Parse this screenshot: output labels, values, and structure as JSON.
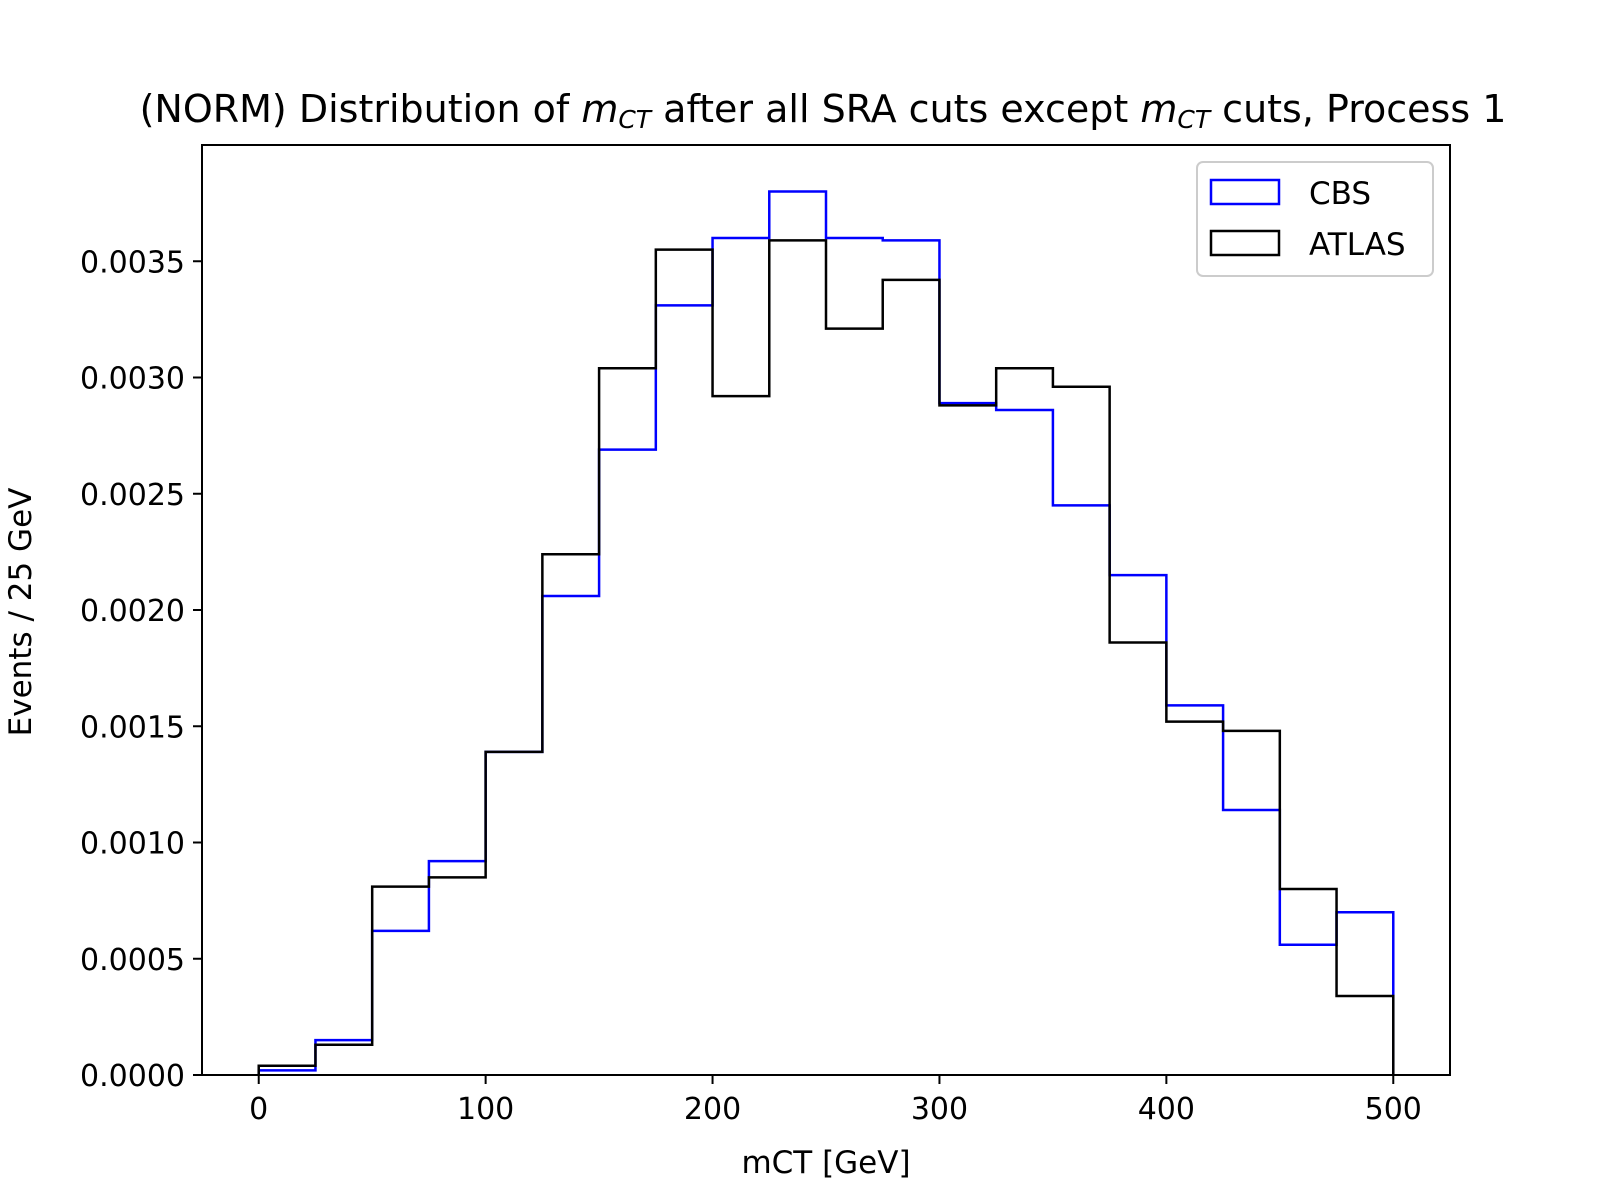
{
  "chart_data": {
    "type": "histogram-step",
    "title": {
      "prefix": "(NORM) Distribution of ",
      "m1_main": "m",
      "m1_sub": "CT",
      "middle": " after all SRA cuts except ",
      "m2_main": "m",
      "m2_sub": "CT",
      "suffix": " cuts, Process 1"
    },
    "xlabel": "mCT [GeV]",
    "ylabel": "Events / 25 GeV",
    "xlim": [
      -25,
      525
    ],
    "ylim": [
      0,
      0.004
    ],
    "xticks": [
      {
        "value": 0,
        "label": "0"
      },
      {
        "value": 100,
        "label": "100"
      },
      {
        "value": 200,
        "label": "200"
      },
      {
        "value": 300,
        "label": "300"
      },
      {
        "value": 400,
        "label": "400"
      },
      {
        "value": 500,
        "label": "500"
      }
    ],
    "yticks": [
      {
        "value": 0.0,
        "label": "0.0000"
      },
      {
        "value": 0.0005,
        "label": "0.0005"
      },
      {
        "value": 0.001,
        "label": "0.0010"
      },
      {
        "value": 0.0015,
        "label": "0.0015"
      },
      {
        "value": 0.002,
        "label": "0.0020"
      },
      {
        "value": 0.0025,
        "label": "0.0025"
      },
      {
        "value": 0.003,
        "label": "0.0030"
      },
      {
        "value": 0.0035,
        "label": "0.0035"
      }
    ],
    "bin_edges": [
      0,
      25,
      50,
      75,
      100,
      125,
      150,
      175,
      200,
      225,
      250,
      275,
      300,
      325,
      350,
      375,
      400,
      425,
      450,
      475,
      500
    ],
    "legend_position": "upper-right",
    "grid": false,
    "series": [
      {
        "name": "CBS",
        "color": "#0000ff",
        "values": [
          2e-05,
          0.00015,
          0.00062,
          0.00092,
          0.00139,
          0.00206,
          0.00269,
          0.00331,
          0.0036,
          0.0038,
          0.0036,
          0.00359,
          0.00289,
          0.00286,
          0.00245,
          0.00215,
          0.00159,
          0.00114,
          0.00056,
          0.0007
        ]
      },
      {
        "name": "ATLAS",
        "color": "#000000",
        "values": [
          4e-05,
          0.00013,
          0.00081,
          0.00085,
          0.00139,
          0.00224,
          0.00304,
          0.00355,
          0.00292,
          0.00359,
          0.00321,
          0.00342,
          0.00288,
          0.00304,
          0.00296,
          0.00186,
          0.00152,
          0.00148,
          0.0008,
          0.00034
        ]
      }
    ]
  }
}
